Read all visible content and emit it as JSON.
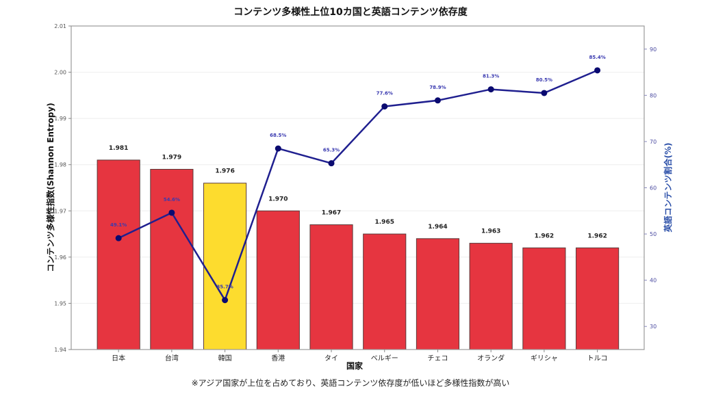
{
  "chart_data": {
    "type": "bar",
    "title": "コンテンツ多様性上位10カ国と英語コンテンツ依存度",
    "xlabel": "国家",
    "ylabel": "コンテンツ多様性指数(Shannon Entropy)",
    "y2label": "英語コンテンツ割合(%)",
    "footnote": "※アジア国家が上位を占めており、英語コンテンツ依存度が低いほど多様性指数が高い",
    "categories": [
      "日本",
      "台湾",
      "韓国",
      "香港",
      "タイ",
      "ベルギー",
      "チェコ",
      "オランダ",
      "ギリシャ",
      "トルコ"
    ],
    "series": [
      {
        "name": "コンテンツ多様性指数",
        "type": "bar",
        "axis": "left",
        "values": [
          1.981,
          1.979,
          1.976,
          1.97,
          1.967,
          1.965,
          1.964,
          1.963,
          1.962,
          1.962
        ],
        "labels": [
          "1.981",
          "1.979",
          "1.976",
          "1.970",
          "1.967",
          "1.965",
          "1.964",
          "1.963",
          "1.962",
          "1.962"
        ],
        "highlight_index": 2
      },
      {
        "name": "英語コンテンツ割合",
        "type": "line",
        "axis": "right",
        "values": [
          49.1,
          54.6,
          35.7,
          68.5,
          65.3,
          77.6,
          78.9,
          81.3,
          80.5,
          85.4
        ],
        "labels": [
          "49.1%",
          "54.6%",
          "35.7%",
          "68.5%",
          "65.3%",
          "77.6%",
          "78.9%",
          "81.3%",
          "80.5%",
          "85.4%"
        ]
      }
    ],
    "ylim": [
      1.94,
      2.01
    ],
    "yticks": [
      "1.94",
      "1.95",
      "1.96",
      "1.97",
      "1.98",
      "1.99",
      "2.00",
      "2.01"
    ],
    "y2lim": [
      25,
      95
    ],
    "y2ticks": [
      "30",
      "40",
      "50",
      "60",
      "70",
      "80",
      "90"
    ],
    "grid": true,
    "colors": {
      "bar": "#e63540",
      "highlight": "#fddc2e",
      "bar_edge": "#5a3a3a",
      "line": "#1f1f8f",
      "marker": "#0a0a70",
      "right_axis": "#2b4fa8",
      "grid": "#eeeeee"
    }
  }
}
